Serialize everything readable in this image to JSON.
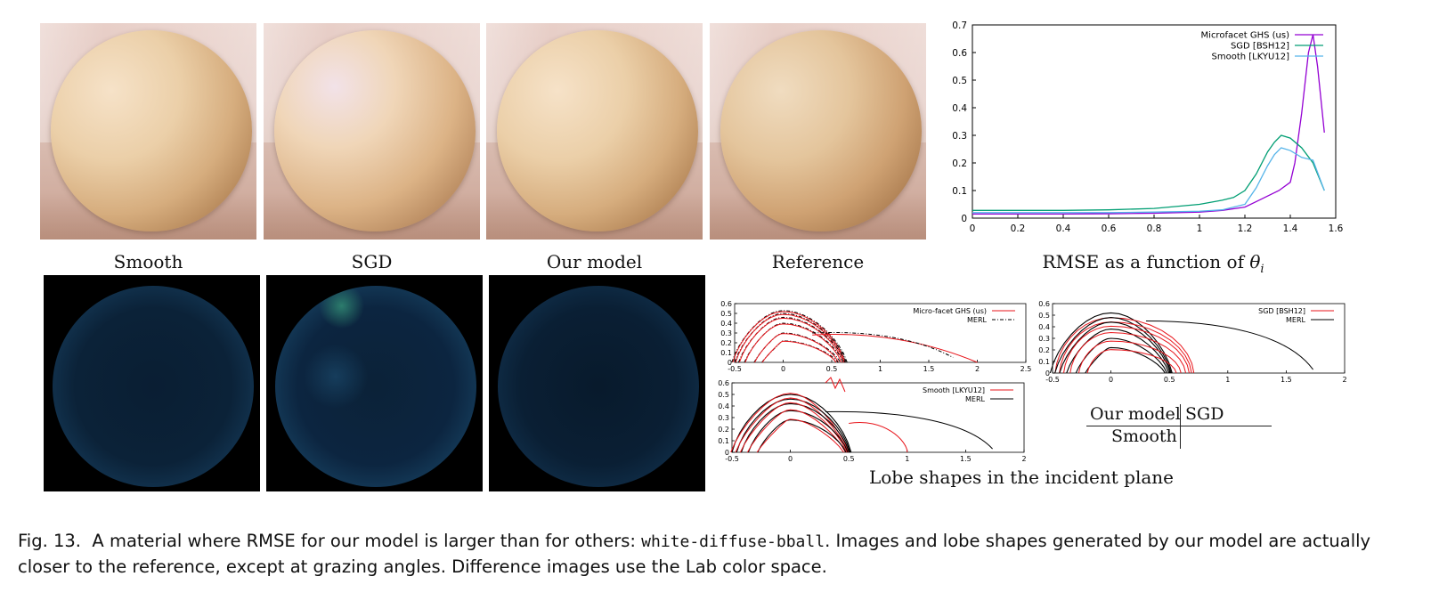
{
  "column_labels": [
    "Smooth",
    "SGD",
    "Our model",
    "Reference"
  ],
  "rmse_label": "RMSE as a function of θi",
  "rmse_label_parts": {
    "prefix": "RMSE as a function of ",
    "symbol": "θ",
    "subscript": "i"
  },
  "lobe_label": "Lobe shapes in the incident plane",
  "layout_key": {
    "top_left": "Our model",
    "top_right": "SGD",
    "bottom_left": "Smooth"
  },
  "caption": {
    "fig": "Fig. 13.",
    "text_before": "A material where RMSE for our model is larger than for others: ",
    "code": "white-diffuse-bball",
    "text_after": ". Images and lobe shapes generated by our model are actually closer to the reference, except at grazing angles. Difference images use the Lab color space."
  },
  "colors": {
    "ours": "#9400d3",
    "sgd": "#009e73",
    "smooth": "#56b4e9",
    "fit": "#e8151b",
    "merl": "#000000"
  },
  "chart_data": [
    {
      "type": "line",
      "title": "",
      "xlim": [
        0,
        1.6
      ],
      "ylim": [
        0,
        0.7
      ],
      "xticks": [
        "0",
        "0.2",
        "0.4",
        "0.6",
        "0.8",
        "1",
        "1.2",
        "1.4",
        "1.6"
      ],
      "yticks": [
        "0",
        "0.1",
        "0.2",
        "0.3",
        "0.4",
        "0.5",
        "0.6",
        "0.7"
      ],
      "legend": "top-right",
      "series": [
        {
          "name": "Microfacet GHS (us)",
          "color": "#9400d3",
          "x": [
            0,
            0.2,
            0.4,
            0.6,
            0.8,
            1.0,
            1.1,
            1.2,
            1.25,
            1.3,
            1.35,
            1.4,
            1.42,
            1.45,
            1.48,
            1.5,
            1.52,
            1.55
          ],
          "y": [
            0.015,
            0.015,
            0.015,
            0.016,
            0.018,
            0.022,
            0.028,
            0.04,
            0.06,
            0.08,
            0.1,
            0.13,
            0.2,
            0.38,
            0.6,
            0.665,
            0.55,
            0.31
          ]
        },
        {
          "name": "SGD [BSH12]",
          "color": "#009e73",
          "x": [
            0,
            0.2,
            0.4,
            0.6,
            0.8,
            1.0,
            1.1,
            1.15,
            1.2,
            1.25,
            1.3,
            1.33,
            1.36,
            1.4,
            1.45,
            1.5,
            1.55
          ],
          "y": [
            0.028,
            0.028,
            0.028,
            0.03,
            0.035,
            0.05,
            0.065,
            0.075,
            0.1,
            0.16,
            0.24,
            0.275,
            0.3,
            0.29,
            0.255,
            0.2,
            0.1
          ]
        },
        {
          "name": "Smooth [LKYU12]",
          "color": "#56b4e9",
          "x": [
            0,
            0.2,
            0.4,
            0.6,
            0.8,
            1.0,
            1.1,
            1.2,
            1.25,
            1.3,
            1.33,
            1.36,
            1.4,
            1.45,
            1.5,
            1.55
          ],
          "y": [
            0.02,
            0.02,
            0.02,
            0.02,
            0.022,
            0.025,
            0.03,
            0.05,
            0.11,
            0.19,
            0.23,
            0.255,
            0.245,
            0.22,
            0.21,
            0.1
          ]
        }
      ]
    },
    {
      "type": "line",
      "title": "",
      "xlim": [
        -0.5,
        2.5
      ],
      "ylim": [
        0,
        0.6
      ],
      "xticks": [
        "-0.5",
        "0",
        "0.5",
        "1",
        "1.5",
        "2",
        "2.5"
      ],
      "yticks": [
        "0",
        "0.1",
        "0.2",
        "0.3",
        "0.4",
        "0.5",
        "0.6"
      ],
      "legend": "top-right",
      "series": [
        {
          "name": "Micro-facet GHS (us)",
          "color": "#e8151b"
        },
        {
          "name": "MERL",
          "color": "#000000"
        }
      ]
    },
    {
      "type": "line",
      "title": "",
      "xlim": [
        -0.5,
        2
      ],
      "ylim": [
        0,
        0.6
      ],
      "xticks": [
        "-0.5",
        "0",
        "0.5",
        "1",
        "1.5",
        "2"
      ],
      "yticks": [
        "0",
        "0.1",
        "0.2",
        "0.3",
        "0.4",
        "0.5",
        "0.6"
      ],
      "legend": "top-right",
      "series": [
        {
          "name": "SGD [BSH12]",
          "color": "#e8151b"
        },
        {
          "name": "MERL",
          "color": "#000000"
        }
      ]
    },
    {
      "type": "line",
      "title": "",
      "xlim": [
        -0.5,
        2
      ],
      "ylim": [
        0,
        0.6
      ],
      "xticks": [
        "-0.5",
        "0",
        "0.5",
        "1",
        "1.5",
        "2"
      ],
      "yticks": [
        "0",
        "0.1",
        "0.2",
        "0.3",
        "0.4",
        "0.5",
        "0.6"
      ],
      "legend": "top-right",
      "series": [
        {
          "name": "Smooth [LKYU12]",
          "color": "#e8151b"
        },
        {
          "name": "MERL",
          "color": "#000000"
        }
      ]
    }
  ]
}
